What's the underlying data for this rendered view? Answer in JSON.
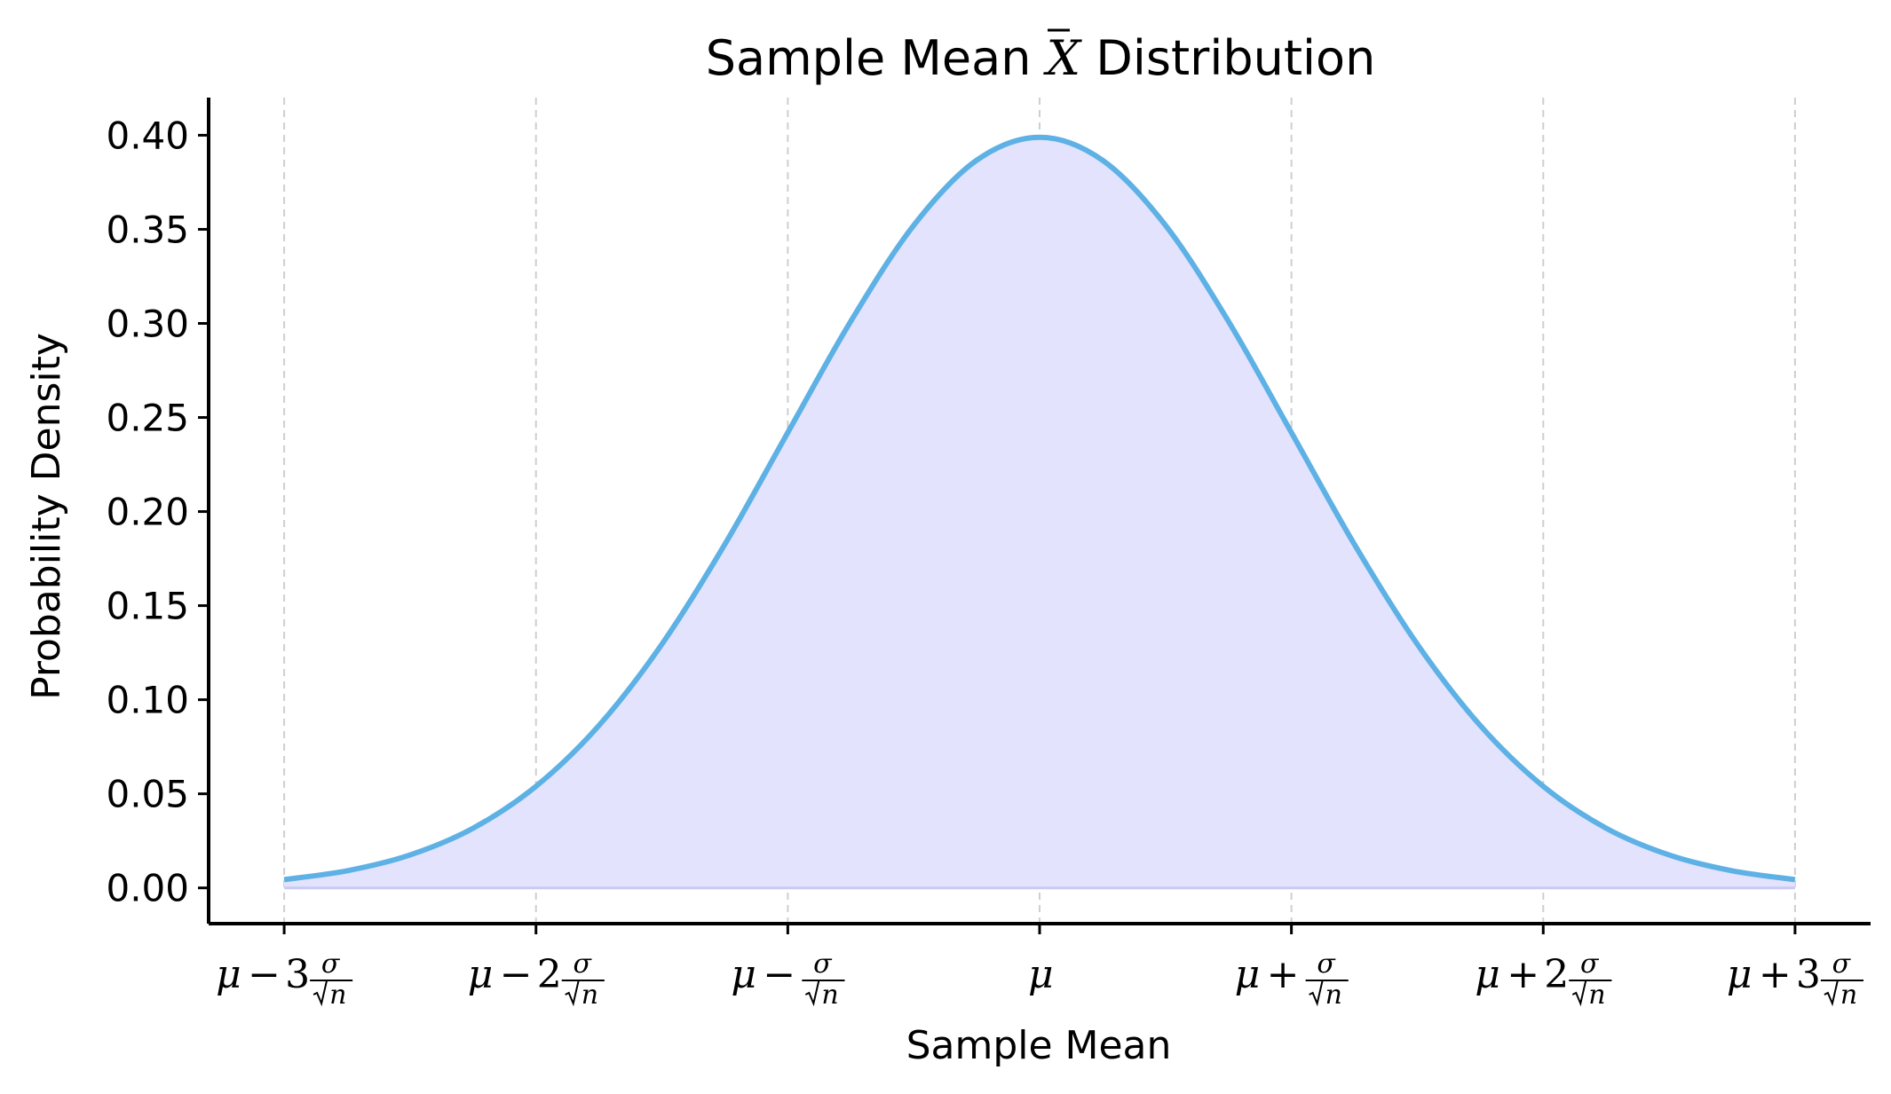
{
  "chart_data": {
    "type": "area",
    "title": {
      "before": "Sample Mean ",
      "symbol": "X",
      "after": " Distribution"
    },
    "xlabel": "Sample Mean",
    "ylabel": "Probability Density",
    "x": [
      -3,
      -2.75,
      -2.5,
      -2.25,
      -2,
      -1.75,
      -1.5,
      -1.25,
      -1,
      -0.75,
      -0.5,
      -0.25,
      0,
      0.25,
      0.5,
      0.75,
      1,
      1.25,
      1.5,
      1.75,
      2,
      2.25,
      2.5,
      2.75,
      3
    ],
    "y": [
      0.0044,
      0.0091,
      0.0175,
      0.0317,
      0.054,
      0.0863,
      0.1295,
      0.1826,
      0.242,
      0.3011,
      0.3521,
      0.3867,
      0.3989,
      0.3867,
      0.3521,
      0.3011,
      0.242,
      0.1826,
      0.1295,
      0.0863,
      0.054,
      0.0317,
      0.0175,
      0.0091,
      0.0044
    ],
    "xlim": [
      -3.3,
      3.3
    ],
    "ylim": [
      -0.019,
      0.42
    ],
    "yticks": [
      0.0,
      0.05,
      0.1,
      0.15,
      0.2,
      0.25,
      0.3,
      0.35,
      0.4
    ],
    "ytick_labels": [
      "0.00",
      "0.05",
      "0.10",
      "0.15",
      "0.20",
      "0.25",
      "0.30",
      "0.35",
      "0.40"
    ],
    "xticks": [
      {
        "value": -3,
        "mu": "μ",
        "op": "−",
        "coef": "3",
        "num": "σ",
        "den": "n"
      },
      {
        "value": -2,
        "mu": "μ",
        "op": "−",
        "coef": "2",
        "num": "σ",
        "den": "n"
      },
      {
        "value": -1,
        "mu": "μ",
        "op": "−",
        "coef": "",
        "num": "σ",
        "den": "n"
      },
      {
        "value": 0,
        "mu": "μ",
        "op": "",
        "coef": "",
        "num": "",
        "den": ""
      },
      {
        "value": 1,
        "mu": "μ",
        "op": "+",
        "coef": "",
        "num": "σ",
        "den": "n"
      },
      {
        "value": 2,
        "mu": "μ",
        "op": "+",
        "coef": "2",
        "num": "σ",
        "den": "n"
      },
      {
        "value": 3,
        "mu": "μ",
        "op": "+",
        "coef": "3",
        "num": "σ",
        "den": "n"
      }
    ],
    "grid": "vertical dashed",
    "colors": {
      "line": "#5DB1E4",
      "fill": "#E3E3FE",
      "grid": "#CFCFCF",
      "axis": "#000000"
    }
  }
}
